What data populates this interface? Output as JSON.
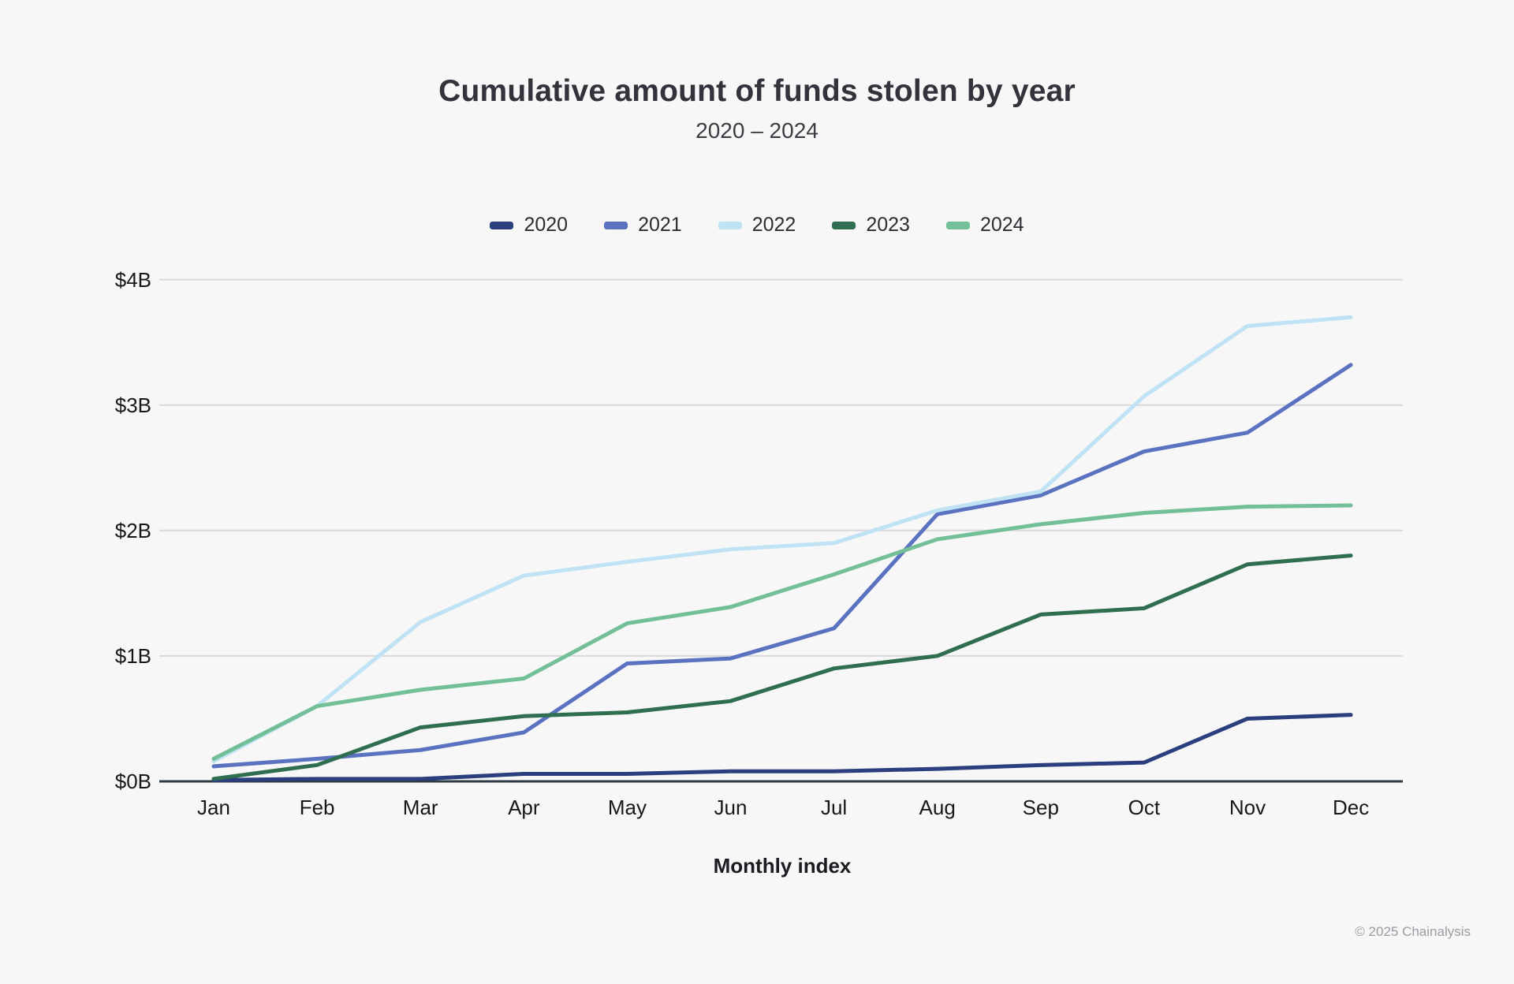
{
  "page": {
    "background": "#f7f7f7"
  },
  "chart": {
    "title": "Cumulative amount of funds stolen by year",
    "subtitle": "2020 – 2024"
  },
  "footer": {
    "credit": "© 2025 Chainalysis"
  },
  "colors": {
    "grid": "#d9d9db",
    "axis": "#2e3b44",
    "title_text": "#32333b",
    "tick_text": "#17181c",
    "footer_text": "#9b9ba3"
  },
  "chart_data": {
    "type": "line",
    "title": "Cumulative amount of funds stolen by year",
    "subtitle": "2020 – 2024",
    "xlabel": "Monthly index",
    "ylabel": "",
    "units": "billions USD",
    "x": [
      "Jan",
      "Feb",
      "Mar",
      "Apr",
      "May",
      "Jun",
      "Jul",
      "Aug",
      "Sep",
      "Oct",
      "Nov",
      "Dec"
    ],
    "ylim": [
      0,
      4
    ],
    "yticks": [
      {
        "value": 0,
        "label": "$0B"
      },
      {
        "value": 1,
        "label": "$1B"
      },
      {
        "value": 2,
        "label": "$2B"
      },
      {
        "value": 3,
        "label": "$3B"
      },
      {
        "value": 4,
        "label": "$4B"
      }
    ],
    "grid": "horizontal",
    "legend_position": "top",
    "series": [
      {
        "name": "2020",
        "color": "#2b3e7e",
        "values": [
          0.01,
          0.02,
          0.02,
          0.06,
          0.06,
          0.08,
          0.08,
          0.1,
          0.13,
          0.15,
          0.5,
          0.53
        ]
      },
      {
        "name": "2021",
        "color": "#5a72c0",
        "values": [
          0.12,
          0.18,
          0.25,
          0.39,
          0.94,
          0.98,
          1.22,
          2.13,
          2.28,
          2.63,
          2.78,
          3.32
        ]
      },
      {
        "name": "2022",
        "color": "#bfe2f4",
        "values": [
          0.16,
          0.6,
          1.27,
          1.64,
          1.75,
          1.85,
          1.9,
          2.16,
          2.31,
          3.07,
          3.63,
          3.7
        ]
      },
      {
        "name": "2023",
        "color": "#2f6e51",
        "values": [
          0.02,
          0.13,
          0.43,
          0.52,
          0.55,
          0.64,
          0.9,
          1.0,
          1.33,
          1.38,
          1.73,
          1.8
        ]
      },
      {
        "name": "2024",
        "color": "#72bf98",
        "values": [
          0.18,
          0.6,
          0.73,
          0.82,
          1.26,
          1.39,
          1.65,
          1.93,
          2.05,
          2.14,
          2.19,
          2.2
        ]
      }
    ]
  }
}
